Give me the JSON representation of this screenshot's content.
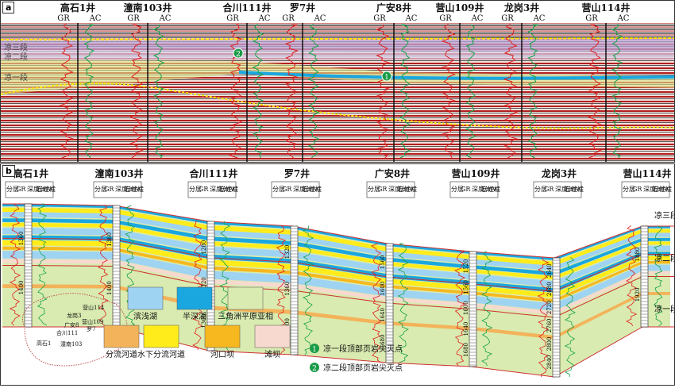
{
  "panel_a": {
    "tag": "a",
    "wells": [
      {
        "name": "高石1井"
      },
      {
        "name": "潼南103井"
      },
      {
        "name": "合川111井"
      },
      {
        "name": "罗7井"
      },
      {
        "name": "广安8井"
      },
      {
        "name": "营山109井"
      },
      {
        "name": "龙岗3井"
      },
      {
        "name": "营山114井"
      }
    ],
    "log_labels": {
      "gr": "GR",
      "ac": "AC"
    },
    "layer_labels": [
      "凉三段",
      "凉二段",
      "凉一段"
    ],
    "markers": [
      "1",
      "2"
    ]
  },
  "panel_b": {
    "tag": "b",
    "wells": [
      {
        "name": "高石1井",
        "depths": [
          "1360",
          "1400"
        ]
      },
      {
        "name": "潼南103井",
        "depths": [
          "1360",
          "1400"
        ]
      },
      {
        "name": "合川111井",
        "depths": [
          "1280",
          "1320",
          "1360"
        ]
      },
      {
        "name": "罗7井",
        "depths": [
          "1320",
          "1360",
          "1400"
        ]
      },
      {
        "name": "广安8井",
        "depths": [
          "1560",
          "1600",
          "1640",
          "1680"
        ]
      },
      {
        "name": "营山109井",
        "depths": [
          "1520",
          "1560",
          "1600",
          "1640",
          "1680"
        ]
      },
      {
        "name": "龙岗3井",
        "depths": [
          "2640",
          "2680",
          "2720",
          "2760",
          "2800",
          "2840"
        ]
      },
      {
        "name": "营山114井",
        "depths": [
          "1880",
          "1920"
        ]
      }
    ],
    "column_headers": {
      "layer": "分层",
      "gr": "GR",
      "depth": "深度/m",
      "lith": "岩性柱",
      "ac": "AC"
    },
    "right_layers": [
      "凉三段",
      "凉二段",
      "凉一段"
    ],
    "map_labels": [
      "营山114",
      "龙岗3",
      "营山109",
      "广安8",
      "罗7",
      "合川111",
      "高石1",
      "潼南103"
    ],
    "legend": [
      {
        "label": "滨浅湖",
        "color": "#9fd3f2"
      },
      {
        "label": "半深湖",
        "color": "#1aa7e0"
      },
      {
        "label": "三角洲平原亚相",
        "color": "#d9ebb0"
      },
      {
        "label": "分流河道",
        "color": "#f3b35a"
      },
      {
        "label": "水下分流河道",
        "color": "#ffec1a"
      },
      {
        "label": "河口坝",
        "color": "#f6b81e"
      },
      {
        "label": "滩坝",
        "color": "#f7d9cf"
      }
    ],
    "marker_legend": [
      {
        "num": "1",
        "label": "凉一段顶部页岩尖灭点"
      },
      {
        "num": "2",
        "label": "凉二段顶部页岩尖灭点"
      }
    ]
  }
}
